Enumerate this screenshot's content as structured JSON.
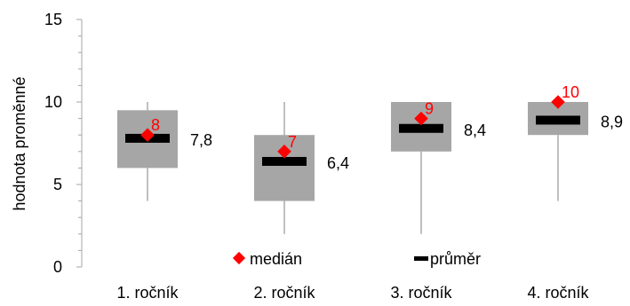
{
  "chart_data": {
    "type": "box",
    "ylabel": "hodnota proměnné",
    "ylim": [
      0,
      15
    ],
    "y_ticks": [
      0,
      5,
      10,
      15
    ],
    "categories": [
      "1. ročník",
      "2. ročník",
      "3. ročník",
      "4. ročník"
    ],
    "boxes": [
      {
        "category": "1. ročník",
        "min": 4,
        "q1": 6,
        "q3": 9.5,
        "max": 10,
        "median": 8,
        "mean": 7.8,
        "median_label": "8",
        "mean_label": "7,8"
      },
      {
        "category": "2. ročník",
        "min": 2,
        "q1": 4,
        "q3": 8,
        "max": 10,
        "median": 7,
        "mean": 6.4,
        "median_label": "7",
        "mean_label": "6,4"
      },
      {
        "category": "3. ročník",
        "min": 2,
        "q1": 7,
        "q3": 10,
        "max": 10,
        "median": 9,
        "mean": 8.4,
        "median_label": "9",
        "mean_label": "8,4"
      },
      {
        "category": "4. ročník",
        "min": 4,
        "q1": 8,
        "q3": 10,
        "max": 10,
        "median": 10,
        "mean": 8.9,
        "median_label": "10",
        "mean_label": "8,9"
      }
    ],
    "legend": {
      "median": "medián",
      "mean": "průměr"
    },
    "colors": {
      "box": "#a6a6a6",
      "whisker": "#bfbfbf",
      "median": "#ff0000",
      "mean": "#000000",
      "axis": "#a6a6a6"
    }
  }
}
